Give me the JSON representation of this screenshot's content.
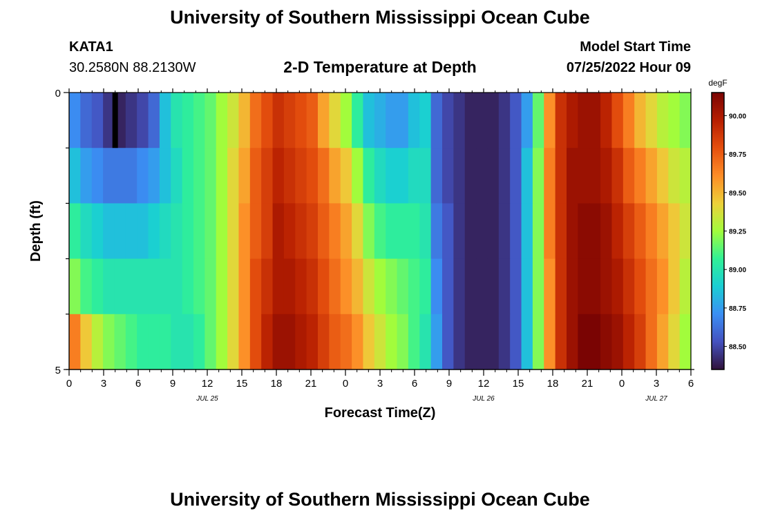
{
  "header": {
    "title": "University of Southern Mississippi Ocean Cube",
    "station_id": "KATA1",
    "station_coords": "30.2580N  88.2130W",
    "plot_title": "2-D Temperature at Depth",
    "model_start_label": "Model Start Time",
    "model_start_value": "07/25/2022 Hour 09"
  },
  "footer": {
    "title": "University of Southern Mississippi Ocean Cube"
  },
  "chart_data": {
    "type": "heatmap",
    "title": "2-D Temperature at Depth",
    "xlabel": "Forecast Time(Z)",
    "ylabel": "Depth (ft)",
    "ylim": [
      0,
      5
    ],
    "y_ticks": [
      0,
      1,
      2,
      3,
      4,
      5
    ],
    "y_tick_labels": [
      "0",
      "5"
    ],
    "x_hours": [
      0,
      1,
      2,
      3,
      4,
      5,
      6,
      7,
      8,
      9,
      10,
      11,
      12,
      13,
      14,
      15,
      16,
      17,
      18,
      19,
      20,
      21,
      22,
      23,
      24,
      25,
      26,
      27,
      28,
      29,
      30,
      31,
      32,
      33,
      34,
      35,
      36,
      37,
      38,
      39,
      40,
      41,
      42,
      43,
      44,
      45,
      46,
      47,
      48,
      49,
      50,
      51,
      52,
      53,
      54
    ],
    "x_tick_labels": [
      "0",
      "3",
      "6",
      "9",
      "12",
      "15",
      "18",
      "21",
      "0",
      "3",
      "6",
      "9",
      "12",
      "15",
      "18",
      "21",
      "0",
      "3",
      "6"
    ],
    "date_labels": [
      {
        "text": "JUL 25",
        "hour": 12
      },
      {
        "text": "JUL 26",
        "hour": 36
      },
      {
        "text": "JUL 27",
        "hour": 51
      }
    ],
    "depth_layers": [
      0.5,
      1.5,
      2.5,
      3.5,
      4.5
    ],
    "colorbar": {
      "unit": "degF",
      "min": 88.35,
      "max": 90.15,
      "ticks": [
        88.5,
        88.75,
        89.0,
        89.25,
        89.5,
        89.75,
        90.0
      ],
      "tick_labels": [
        "88.50",
        "88.75",
        "89.00",
        "89.25",
        "89.50",
        "89.75",
        "90.00"
      ]
    },
    "missing_cell": {
      "hour": 4,
      "layer": 0
    },
    "temperature_degF": [
      [
        88.7,
        88.6,
        88.55,
        88.45,
        88.4,
        88.45,
        88.5,
        88.6,
        88.85,
        89.0,
        89.05,
        89.1,
        89.15,
        89.25,
        89.35,
        89.5,
        89.7,
        89.8,
        89.9,
        89.85,
        89.8,
        89.75,
        89.55,
        89.4,
        89.25,
        89.05,
        88.85,
        88.8,
        88.75,
        88.75,
        88.85,
        88.9,
        88.6,
        88.5,
        88.45,
        88.4,
        88.4,
        88.4,
        88.45,
        88.55,
        88.75,
        89.15,
        89.6,
        89.9,
        90.0,
        90.05,
        90.05,
        89.95,
        89.8,
        89.65,
        89.5,
        89.4,
        89.3,
        89.25,
        89.2
      ],
      [
        88.85,
        88.75,
        88.7,
        88.65,
        88.65,
        88.65,
        88.7,
        88.75,
        88.85,
        88.95,
        89.05,
        89.1,
        89.15,
        89.25,
        89.4,
        89.55,
        89.75,
        89.85,
        89.95,
        89.9,
        89.85,
        89.8,
        89.7,
        89.55,
        89.45,
        89.25,
        89.05,
        88.95,
        88.9,
        88.9,
        88.95,
        88.95,
        88.6,
        88.5,
        88.45,
        88.4,
        88.4,
        88.4,
        88.45,
        88.55,
        88.85,
        89.2,
        89.65,
        89.9,
        90.05,
        90.05,
        90.05,
        90.0,
        89.9,
        89.75,
        89.65,
        89.55,
        89.45,
        89.35,
        89.3
      ],
      [
        89.05,
        88.95,
        88.9,
        88.85,
        88.85,
        88.85,
        88.85,
        88.9,
        88.95,
        89.0,
        89.05,
        89.1,
        89.15,
        89.25,
        89.4,
        89.6,
        89.75,
        89.85,
        90.0,
        89.95,
        89.9,
        89.85,
        89.75,
        89.65,
        89.55,
        89.4,
        89.2,
        89.1,
        89.05,
        89.05,
        89.05,
        89.0,
        88.65,
        88.55,
        88.45,
        88.4,
        88.4,
        88.4,
        88.45,
        88.55,
        88.85,
        89.2,
        89.65,
        89.9,
        90.05,
        90.1,
        90.1,
        90.05,
        89.95,
        89.85,
        89.75,
        89.65,
        89.55,
        89.45,
        89.35
      ],
      [
        89.2,
        89.1,
        89.05,
        89.0,
        89.0,
        89.0,
        89.0,
        89.0,
        89.0,
        89.0,
        89.05,
        89.1,
        89.15,
        89.25,
        89.4,
        89.6,
        89.8,
        89.9,
        90.0,
        90.0,
        89.95,
        89.9,
        89.8,
        89.7,
        89.6,
        89.5,
        89.35,
        89.25,
        89.2,
        89.15,
        89.1,
        89.05,
        88.7,
        88.55,
        88.45,
        88.4,
        88.4,
        88.4,
        88.45,
        88.55,
        88.85,
        89.2,
        89.6,
        89.9,
        90.05,
        90.1,
        90.1,
        90.05,
        90.0,
        89.9,
        89.8,
        89.7,
        89.6,
        89.45,
        89.3
      ],
      [
        89.65,
        89.45,
        89.3,
        89.2,
        89.15,
        89.1,
        89.05,
        89.05,
        89.05,
        89.0,
        89.0,
        89.05,
        89.15,
        89.25,
        89.4,
        89.6,
        89.8,
        89.95,
        90.05,
        90.05,
        90.0,
        89.95,
        89.85,
        89.75,
        89.7,
        89.6,
        89.45,
        89.35,
        89.25,
        89.2,
        89.1,
        89.0,
        88.75,
        88.55,
        88.45,
        88.4,
        88.4,
        88.4,
        88.45,
        88.55,
        88.85,
        89.2,
        89.6,
        89.9,
        90.05,
        90.15,
        90.15,
        90.1,
        90.05,
        89.95,
        89.85,
        89.7,
        89.55,
        89.4,
        89.25
      ]
    ]
  }
}
